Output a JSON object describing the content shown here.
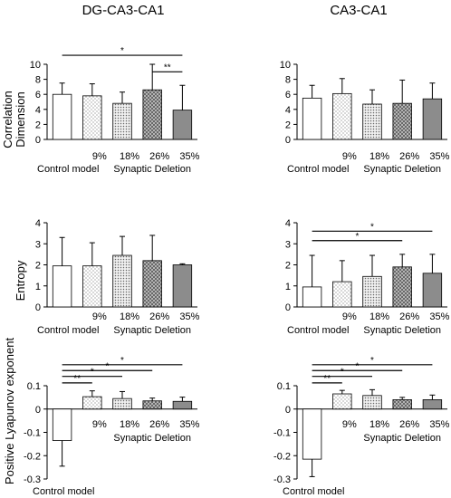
{
  "colors": {
    "axis": "#000000",
    "bar_stroke": "#000000",
    "error": "#000000",
    "sig": "#000000"
  },
  "fills": [
    "white",
    "dots-sparse",
    "dots-dense",
    "crosshatch",
    "gray"
  ],
  "columns": [
    "DG-CA3-CA1",
    "CA3-CA1"
  ],
  "row_labels": [
    "Correlation\nDimension",
    "Entropy",
    "Positive Lyapunov exponent"
  ],
  "chart_data": [
    {
      "type": "bar",
      "title": "DG-CA3-CA1",
      "ylabel": "Correlation Dimension",
      "categories": [
        "Control model",
        "9%",
        "18%",
        "26%",
        "35%"
      ],
      "group_label": "Synaptic Deletion",
      "ylim": [
        0,
        10
      ],
      "yticks": [
        "0",
        "2",
        "4",
        "6",
        "8",
        "10"
      ],
      "ytick_values": [
        0,
        2,
        4,
        6,
        8,
        10
      ],
      "values": [
        6.0,
        5.8,
        4.8,
        6.6,
        3.9
      ],
      "errors": [
        1.5,
        1.6,
        1.5,
        3.4,
        3.3
      ],
      "significance": [
        {
          "from": 0,
          "to": 4,
          "label": "*",
          "y": 11.2
        },
        {
          "from": 3,
          "to": 4,
          "label": "**",
          "y": 9.0
        }
      ]
    },
    {
      "type": "bar",
      "title": "CA3-CA1",
      "ylabel": "",
      "categories": [
        "Control model",
        "9%",
        "18%",
        "26%",
        "35%"
      ],
      "group_label": "Synaptic Deletion",
      "ylim": [
        0,
        10
      ],
      "yticks": [
        "0",
        "2",
        "4",
        "6",
        "8",
        "10"
      ],
      "ytick_values": [
        0,
        2,
        4,
        6,
        8,
        10
      ],
      "values": [
        5.5,
        6.1,
        4.7,
        4.8,
        5.4
      ],
      "errors": [
        1.7,
        2.0,
        1.9,
        3.1,
        2.1
      ],
      "significance": []
    },
    {
      "type": "bar",
      "title": "",
      "ylabel": "Entropy",
      "categories": [
        "Control model",
        "9%",
        "18%",
        "26%",
        "35%"
      ],
      "group_label": "Synaptic Deletion",
      "ylim": [
        0,
        4
      ],
      "yticks": [
        "0",
        "1",
        "2",
        "3",
        "4"
      ],
      "ytick_values": [
        0,
        1,
        2,
        3,
        4
      ],
      "values": [
        1.95,
        1.95,
        2.45,
        2.2,
        2.0
      ],
      "errors": [
        1.35,
        1.1,
        0.9,
        1.2,
        0.05
      ],
      "significance": []
    },
    {
      "type": "bar",
      "title": "",
      "ylabel": "",
      "categories": [
        "Control model",
        "9%",
        "18%",
        "26%",
        "35%"
      ],
      "group_label": "Synaptic Deletion",
      "ylim": [
        0,
        4
      ],
      "yticks": [
        "0",
        "1",
        "2",
        "3",
        "4"
      ],
      "ytick_values": [
        0,
        1,
        2,
        3,
        4
      ],
      "values": [
        0.95,
        1.2,
        1.45,
        1.9,
        1.6
      ],
      "errors": [
        1.5,
        1.0,
        1.0,
        0.6,
        0.9
      ],
      "significance": [
        {
          "from": 0,
          "to": 4,
          "label": "*",
          "y": 3.6
        },
        {
          "from": 0,
          "to": 3,
          "label": "*",
          "y": 3.15
        }
      ]
    },
    {
      "type": "bar",
      "title": "",
      "ylabel": "Positive Lyapunov exponent",
      "categories": [
        "Control model",
        "9%",
        "18%",
        "26%",
        "35%"
      ],
      "group_label": "Synaptic Deletion",
      "ylim": [
        -0.3,
        0.1
      ],
      "yticks": [
        "-0.3",
        "-0.2",
        "-0.1",
        "0",
        "0.1"
      ],
      "ytick_values": [
        -0.3,
        -0.2,
        -0.1,
        0,
        0.1
      ],
      "values": [
        -0.135,
        0.053,
        0.045,
        0.035,
        0.033
      ],
      "errors": [
        0.11,
        0.025,
        0.03,
        0.012,
        0.018
      ],
      "significance": [
        {
          "from": 0,
          "to": 4,
          "label": "*",
          "y": 0.19
        },
        {
          "from": 0,
          "to": 3,
          "label": "*",
          "y": 0.165
        },
        {
          "from": 0,
          "to": 2,
          "label": "*",
          "y": 0.14
        },
        {
          "from": 0,
          "to": 1,
          "label": "**",
          "y": 0.112
        }
      ]
    },
    {
      "type": "bar",
      "title": "",
      "ylabel": "",
      "categories": [
        "Control model",
        "9%",
        "18%",
        "26%",
        "35%"
      ],
      "group_label": "Synaptic Deletion",
      "ylim": [
        -0.3,
        0.1
      ],
      "yticks": [
        "-0.3",
        "-0.2",
        "-0.1",
        "0",
        "0.1"
      ],
      "ytick_values": [
        -0.3,
        -0.2,
        -0.1,
        0,
        0.1
      ],
      "values": [
        -0.215,
        0.065,
        0.058,
        0.04,
        0.04
      ],
      "errors": [
        0.075,
        0.015,
        0.025,
        0.01,
        0.02
      ],
      "significance": [
        {
          "from": 0,
          "to": 4,
          "label": "*",
          "y": 0.19
        },
        {
          "from": 0,
          "to": 3,
          "label": "*",
          "y": 0.165
        },
        {
          "from": 0,
          "to": 2,
          "label": "*",
          "y": 0.14
        },
        {
          "from": 0,
          "to": 1,
          "label": "**",
          "y": 0.112
        }
      ]
    }
  ]
}
